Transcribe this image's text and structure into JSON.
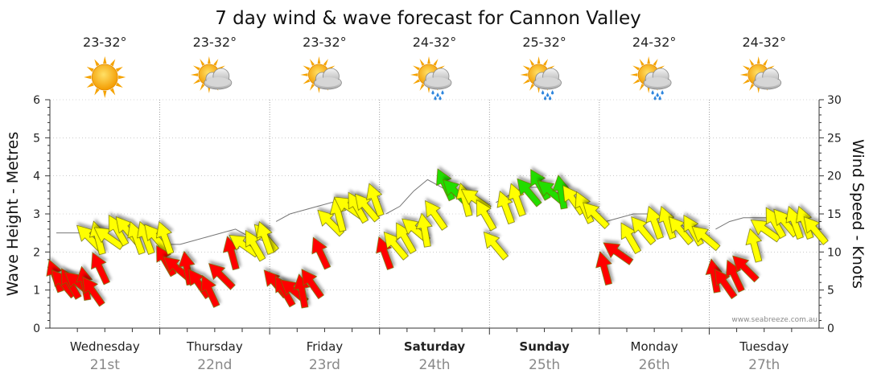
{
  "chart_data": {
    "type": "line",
    "title": "7 day wind & wave forecast for Cannon Valley",
    "ylabel_left": "Wave Height - Metres",
    "ylabel_right": "Wind Speed - Knots",
    "ylim_left": [
      0,
      6
    ],
    "ylim_right": [
      0,
      30
    ],
    "left_ticks": [
      "0",
      "1",
      "2",
      "3",
      "4",
      "5",
      "6"
    ],
    "right_ticks": [
      "0",
      "5",
      "10",
      "15",
      "20",
      "25",
      "30"
    ],
    "days": [
      {
        "day": "Wednesday",
        "date": "21st",
        "temp": "23-32°",
        "icon": "sunny-icon",
        "bold": false
      },
      {
        "day": "Thursday",
        "date": "22nd",
        "temp": "23-32°",
        "icon": "partly-cloudy-icon",
        "bold": false
      },
      {
        "day": "Friday",
        "date": "23rd",
        "temp": "23-32°",
        "icon": "partly-cloudy-icon",
        "bold": false
      },
      {
        "day": "Saturday",
        "date": "24th",
        "temp": "24-32°",
        "icon": "rain-icon",
        "bold": true
      },
      {
        "day": "Sunday",
        "date": "25th",
        "temp": "25-32°",
        "icon": "rain-icon",
        "bold": true
      },
      {
        "day": "Monday",
        "date": "26th",
        "temp": "24-32°",
        "icon": "rain-icon",
        "bold": false
      },
      {
        "day": "Tuesday",
        "date": "27th",
        "temp": "24-32°",
        "icon": "partly-cloudy-icon",
        "bold": false
      }
    ],
    "wave_series": {
      "name": "Wave height",
      "segments": [
        {
          "day": 0,
          "values": [
            2.5,
            2.5,
            2.5,
            2.6,
            2.6,
            2.6,
            2.5,
            2.5
          ]
        },
        {
          "day": 1,
          "values": [
            2.2,
            2.2,
            2.3,
            2.4,
            2.5,
            2.6,
            2.4,
            2.3
          ]
        },
        {
          "day": 2,
          "values": [
            2.8,
            3.0,
            3.1,
            3.2,
            3.3,
            3.3,
            3.2,
            3.1
          ]
        },
        {
          "day": 3,
          "values": [
            3.0,
            3.2,
            3.6,
            3.9,
            3.7,
            3.5,
            3.4,
            3.3
          ]
        },
        {
          "day": 4,
          "values": [
            3.3,
            3.5,
            3.7,
            3.7,
            3.6,
            3.5,
            3.3,
            3.0
          ]
        },
        {
          "day": 5,
          "values": [
            2.8,
            2.9,
            3.0,
            3.0,
            2.9,
            2.8,
            2.6,
            2.5
          ]
        },
        {
          "day": 6,
          "values": [
            2.6,
            2.8,
            2.9,
            2.9,
            2.9,
            2.9,
            2.8,
            2.7
          ]
        }
      ]
    },
    "wind_arrows": [
      {
        "day": 0,
        "knots": [
          7,
          6,
          6,
          6,
          6,
          5,
          8
        ],
        "color": "red"
      },
      {
        "day": 0,
        "knots": [
          12,
          12,
          12,
          13,
          13,
          12,
          12,
          12
        ],
        "color": "yellow"
      },
      {
        "day": 1,
        "knots": [
          9,
          8,
          8,
          6,
          5,
          7,
          10,
          11,
          11,
          12
        ],
        "color": "red"
      },
      {
        "day": 1,
        "knots": [
          12,
          12
        ],
        "color": "yellow"
      },
      {
        "day": 2,
        "knots": [
          6,
          5,
          5,
          5,
          6,
          10,
          14,
          15,
          16,
          16,
          16,
          17
        ],
        "color": "mixed"
      },
      {
        "day": 3,
        "knots": [
          10,
          11,
          12,
          13,
          13,
          15,
          19,
          18,
          17,
          17,
          15
        ],
        "color": "mixed"
      },
      {
        "day": 4,
        "knots": [
          11,
          16,
          17,
          18,
          19,
          18,
          18,
          17,
          16,
          15
        ],
        "color": "mixed"
      },
      {
        "day": 5,
        "knots": [
          8,
          10,
          12,
          13,
          14,
          14,
          13,
          13,
          12
        ],
        "color": "mixed"
      },
      {
        "day": 6,
        "knots": [
          7,
          6,
          7,
          8,
          11,
          13,
          14,
          14,
          14,
          14,
          13
        ],
        "color": "mixed"
      }
    ],
    "credit": "www.seabreeze.com.au",
    "grid": true
  }
}
